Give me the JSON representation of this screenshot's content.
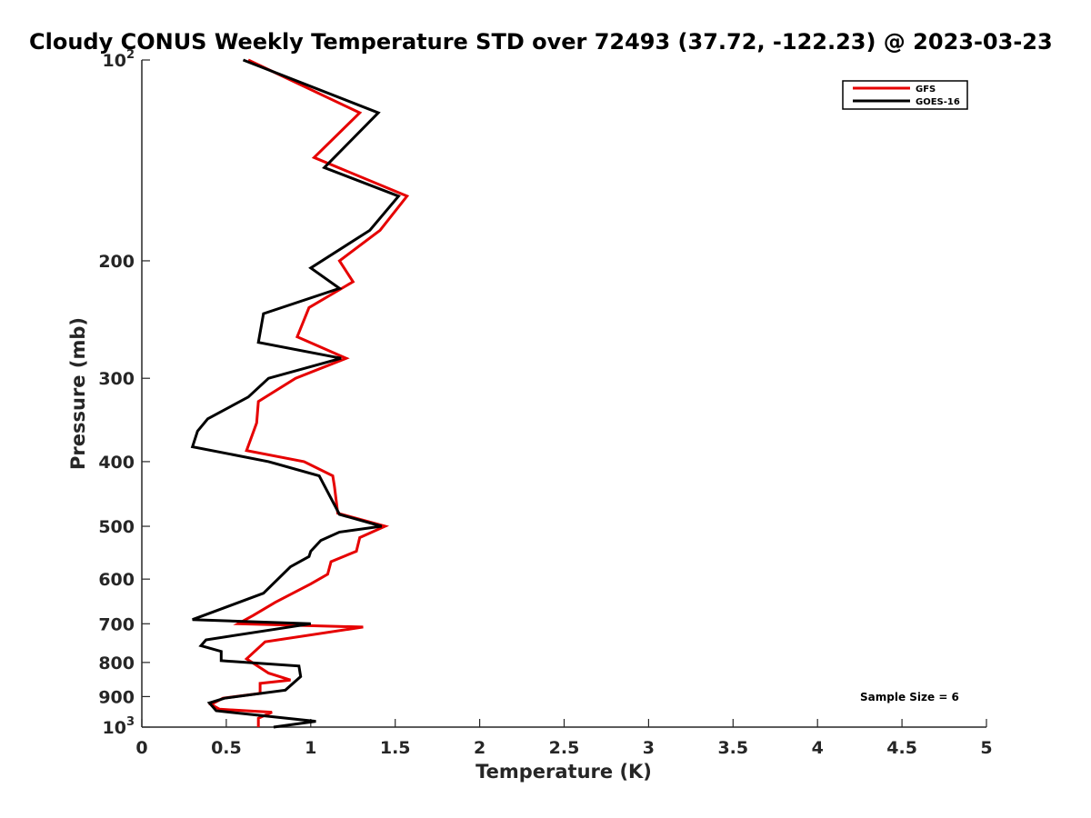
{
  "chart_data": {
    "type": "line",
    "title": "Cloudy CONUS Weekly Temperature STD over 72493 (37.72, -122.23) @ 2023-03-23",
    "xlabel": "Temperature (K)",
    "ylabel": "Pressure (mb)",
    "xlim": [
      0,
      5
    ],
    "ylim": [
      100,
      1000
    ],
    "y_scale": "log",
    "y_reversed": true,
    "grid": false,
    "legend_position": "top-right",
    "x_ticks": [
      {
        "value": 0,
        "label": "0"
      },
      {
        "value": 0.5,
        "label": "0.5"
      },
      {
        "value": 1,
        "label": "1"
      },
      {
        "value": 1.5,
        "label": "1.5"
      },
      {
        "value": 2,
        "label": "2"
      },
      {
        "value": 2.5,
        "label": "2.5"
      },
      {
        "value": 3,
        "label": "3"
      },
      {
        "value": 3.5,
        "label": "3.5"
      },
      {
        "value": 4,
        "label": "4"
      },
      {
        "value": 4.5,
        "label": "4.5"
      },
      {
        "value": 5,
        "label": "5"
      }
    ],
    "y_ticks": [
      {
        "value": 100,
        "base": "10",
        "exp": "2"
      },
      {
        "value": 200,
        "label": "200"
      },
      {
        "value": 300,
        "label": "300"
      },
      {
        "value": 400,
        "label": "400"
      },
      {
        "value": 500,
        "label": "500"
      },
      {
        "value": 600,
        "label": "600"
      },
      {
        "value": 700,
        "label": "700"
      },
      {
        "value": 800,
        "label": "800"
      },
      {
        "value": 900,
        "label": "900"
      },
      {
        "value": 1000,
        "base": "10",
        "exp": "3"
      }
    ],
    "series": [
      {
        "name": "GFS",
        "color": "#e60000",
        "x": [
          0.63,
          1.29,
          1.02,
          1.57,
          1.41,
          1.17,
          1.25,
          0.99,
          0.92,
          1.21,
          0.91,
          0.69,
          0.68,
          0.62,
          0.96,
          1.13,
          1.14,
          1.16,
          1.44,
          1.29,
          1.27,
          1.12,
          1.1,
          1.0,
          0.79,
          0.66,
          0.57,
          1.31,
          0.73,
          0.62,
          0.75,
          0.88,
          0.7,
          0.7,
          0.48,
          0.41,
          0.46,
          0.77,
          0.69,
          0.69
        ],
        "y": [
          100,
          120,
          140,
          160,
          180,
          200,
          215,
          235,
          260,
          280,
          300,
          325,
          350,
          385,
          400,
          420,
          435,
          478,
          500,
          520,
          545,
          565,
          590,
          610,
          650,
          680,
          700,
          708,
          745,
          790,
          830,
          850,
          860,
          890,
          905,
          925,
          940,
          950,
          970,
          1000
        ]
      },
      {
        "name": "GOES-16",
        "color": "#000000",
        "x": [
          0.6,
          1.4,
          1.08,
          1.52,
          1.35,
          1.0,
          1.17,
          0.72,
          0.69,
          1.18,
          0.75,
          0.63,
          0.39,
          0.33,
          0.3,
          0.75,
          1.05,
          1.17,
          1.42,
          1.17,
          1.06,
          1.0,
          0.99,
          0.88,
          0.72,
          0.3,
          1.0,
          0.38,
          0.35,
          0.47,
          0.47,
          0.93,
          0.94,
          0.85,
          0.49,
          0.4,
          0.44,
          1.03,
          0.78
        ],
        "y": [
          100,
          120,
          145,
          160,
          180,
          205,
          220,
          240,
          265,
          280,
          300,
          320,
          345,
          360,
          380,
          400,
          420,
          480,
          500,
          510,
          525,
          545,
          555,
          575,
          630,
          690,
          700,
          740,
          755,
          770,
          795,
          810,
          840,
          880,
          905,
          920,
          945,
          980,
          1000
        ]
      }
    ],
    "annotation": "Sample Size = 6"
  }
}
